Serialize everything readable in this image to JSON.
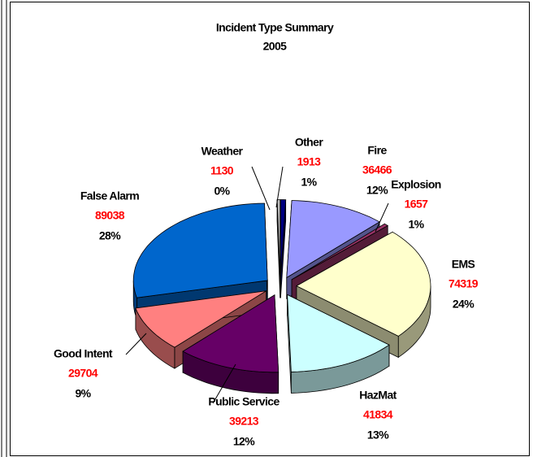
{
  "chart_data": {
    "type": "pie3d",
    "title": "Incident Type Summary",
    "subtitle": "2005",
    "categories": [
      "Other",
      "Fire",
      "Explosion",
      "EMS",
      "HazMat",
      "Public Service",
      "Good Intent",
      "False Alarm",
      "Weather"
    ],
    "values": [
      1913,
      36466,
      1657,
      74319,
      41834,
      39213,
      29704,
      89038,
      1130
    ],
    "percent_labels": [
      "1%",
      "12%",
      "1%",
      "24%",
      "13%",
      "12%",
      "9%",
      "28%",
      "0%"
    ],
    "colors": [
      "#000080",
      "#9999ff",
      "#993366",
      "#ffffcc",
      "#ccffff",
      "#660066",
      "#ff8080",
      "#0066cc",
      "#c0c0c0"
    ]
  }
}
